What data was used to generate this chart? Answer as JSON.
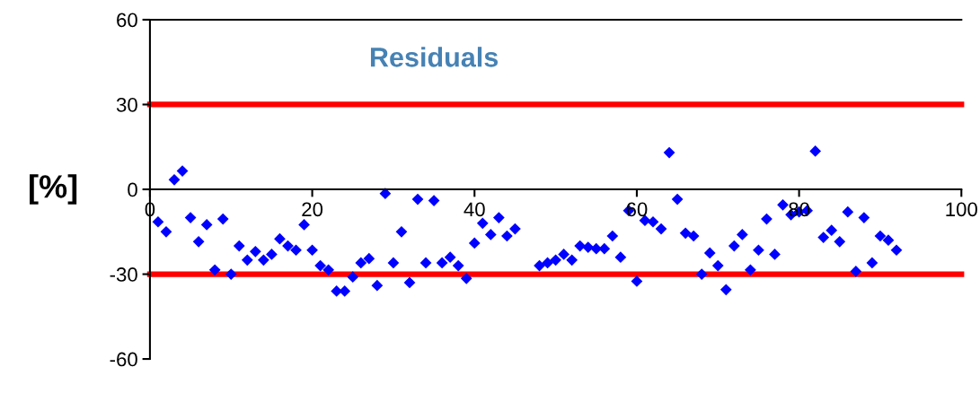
{
  "chart_data": {
    "type": "scatter",
    "title": "Residuals",
    "ylabel": "[%]",
    "x": [
      1,
      2,
      3,
      4,
      5,
      6,
      7,
      8,
      9,
      10,
      11,
      12,
      13,
      14,
      15,
      16,
      17,
      18,
      19,
      20,
      21,
      22,
      23,
      24,
      25,
      26,
      27,
      28,
      29,
      30,
      31,
      32,
      33,
      34,
      35,
      36,
      37,
      38,
      39,
      40,
      41,
      42,
      43,
      44,
      45,
      48,
      49,
      50,
      51,
      52,
      53,
      54,
      55,
      56,
      57,
      58,
      59,
      60,
      61,
      62,
      63,
      64,
      65,
      66,
      67,
      68,
      69,
      70,
      71,
      72,
      73,
      74,
      75,
      76,
      77,
      78,
      79,
      80,
      81,
      82,
      83,
      84,
      85,
      86,
      87,
      88,
      89,
      90,
      91,
      92
    ],
    "series": [
      {
        "color": "#0000ff",
        "values": [
          -11.5,
          -15,
          3.4,
          6.5,
          -10,
          -18.5,
          -12.5,
          -28.5,
          -10.5,
          -30,
          -20,
          -25,
          -22,
          -25,
          -23,
          -17.5,
          -20,
          -21.5,
          -12.5,
          -21.5,
          -27,
          -28.5,
          -36,
          -36,
          -31,
          -26,
          -24.5,
          -34,
          -1.5,
          -26,
          -15,
          -33,
          -3.5,
          -26,
          -4,
          -26,
          -24,
          -27,
          -31.5,
          -19,
          -12,
          -16,
          -10,
          -16.5,
          -14,
          -27,
          -26,
          -25,
          -23,
          -25,
          -20,
          -20.5,
          -21,
          -21,
          -16.5,
          -24,
          -7.5,
          -32.5,
          -11,
          -11.5,
          -14,
          13,
          -3.5,
          -15.5,
          -16.5,
          -30,
          -22.5,
          -27,
          -35.5,
          -20,
          -16,
          -28.5,
          -21.5,
          -10.5,
          -23,
          -5.5,
          -9,
          -8,
          -7.5,
          13.5,
          -17,
          -14.5,
          -18.5,
          -8,
          -29,
          -10,
          -26,
          -16.5,
          -18,
          -21.5
        ]
      }
    ],
    "xlim": [
      0,
      100
    ],
    "xticks": [
      0,
      20,
      40,
      60,
      80,
      100
    ],
    "ylim": [
      -60,
      60
    ],
    "yticks": [
      -60,
      -30,
      0,
      30,
      60
    ],
    "marker": "diamond",
    "grid": false,
    "ref_lines": [
      {
        "axis": "y",
        "value": 30,
        "color": "#ff0000"
      },
      {
        "axis": "y",
        "value": -30,
        "color": "#ff0000"
      }
    ]
  }
}
